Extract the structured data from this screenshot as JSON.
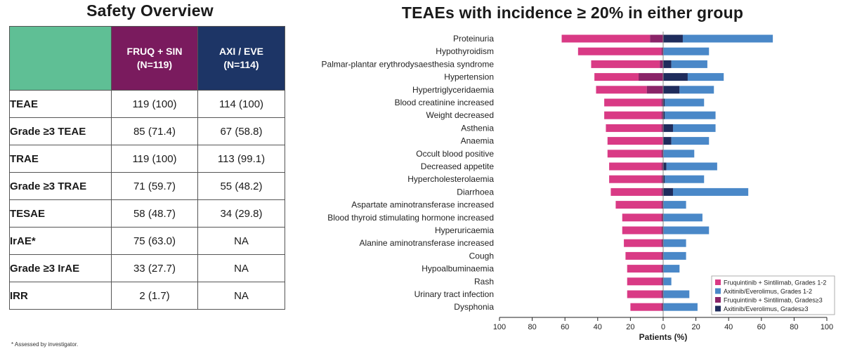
{
  "left": {
    "title": "Safety Overview",
    "table": {
      "col1_name": "FRUQ + SIN",
      "col1_n": "(N=119)",
      "col2_name": "AXI / EVE",
      "col2_n": "(N=114)",
      "rows": [
        {
          "label": "TEAE",
          "fruq": "119 (100)",
          "axi": "114 (100)"
        },
        {
          "label": "Grade ≥3 TEAE",
          "fruq": "85 (71.4)",
          "axi": "67 (58.8)"
        },
        {
          "label": "TRAE",
          "fruq": "119 (100)",
          "axi": "113 (99.1)"
        },
        {
          "label": "Grade ≥3 TRAE",
          "fruq": "71 (59.7)",
          "axi": "55 (48.2)"
        },
        {
          "label": "TESAE",
          "fruq": "58 (48.7)",
          "axi": "34 (29.8)"
        },
        {
          "label": "IrAE*",
          "fruq": "75 (63.0)",
          "axi": "NA"
        },
        {
          "label": "Grade ≥3 IrAE",
          "fruq": "33 (27.7)",
          "axi": "NA"
        },
        {
          "label": "IRR",
          "fruq": "2 (1.7)",
          "axi": "NA"
        }
      ]
    },
    "footnote": "* Assessed by investigator."
  },
  "colors": {
    "fruq_grade12": "#d93a85",
    "fruq_grade3": "#8a2468",
    "axi_grade12": "#4a88c8",
    "axi_grade3": "#1f2c5c"
  },
  "chart_data": {
    "type": "bar",
    "title": "TEAEs with incidence ≥ 20% in either group",
    "xlabel": "Patients (%)",
    "xlim": [
      -100,
      100
    ],
    "x_ticks": [
      "100",
      "80",
      "60",
      "40",
      "20",
      "0",
      "20",
      "40",
      "60",
      "80",
      "100"
    ],
    "categories": [
      "Proteinuria",
      "Hypothyroidism",
      "Palmar-plantar erythrodysaesthesia syndrome",
      "Hypertension",
      "Hypertriglyceridaemia",
      "Blood creatinine increased",
      "Weight decreased",
      "Asthenia",
      "Anaemia",
      "Occult blood positive",
      "Decreased appetite",
      "Hypercholesterolaemia",
      "Diarrhoea",
      "Aspartate aminotransferase increased",
      "Blood thyroid stimulating hormone increased",
      "Hyperuricaemia",
      "Alanine aminotransferase increased",
      "Cough",
      "Hypoalbuminaemia",
      "Rash",
      "Urinary tract infection",
      "Dysphonia"
    ],
    "series": [
      {
        "name": "Fruquintinib + Sintilimab, Grades 1-2",
        "side": "left",
        "values": [
          54,
          51,
          42,
          27,
          31,
          35,
          35,
          34,
          34,
          33,
          32,
          32,
          31,
          28,
          24,
          24,
          23,
          22,
          21,
          21,
          21,
          19
        ]
      },
      {
        "name": "Axitinib/Everolimus, Grades 1-2",
        "side": "right",
        "values": [
          55,
          28,
          22,
          22,
          21,
          24,
          31,
          26,
          23,
          19,
          31,
          24,
          46,
          14,
          24,
          28,
          14,
          14,
          10,
          5,
          16,
          21
        ]
      },
      {
        "name": "Fruquintinib + Sintilimab, Grades≥3",
        "side": "left",
        "values": [
          8,
          1,
          2,
          15,
          10,
          1,
          1,
          1,
          0,
          1,
          1,
          1,
          1,
          1,
          1,
          1,
          1,
          1,
          1,
          1,
          1,
          1
        ]
      },
      {
        "name": "Axitinib/Everolimus, Grades≥3",
        "side": "right",
        "values": [
          12,
          0,
          5,
          15,
          10,
          1,
          1,
          6,
          5,
          0,
          2,
          1,
          6,
          0,
          0,
          0,
          0,
          0,
          0,
          0,
          0,
          0
        ]
      }
    ],
    "legend_position": "bottom-right",
    "grid": false
  }
}
